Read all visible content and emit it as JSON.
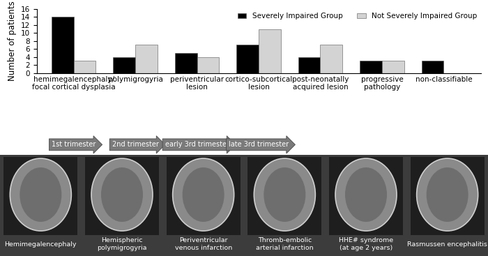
{
  "chart_data": {
    "type": "bar",
    "y_label": "Number of patients",
    "categories": [
      "hemimegalencephaly/\nfocal cortical dysplasia",
      "polymigrogyria",
      "periventricular\nlesion",
      "cortico-subcortical\nlesion",
      "post-neonatally\nacquired lesion",
      "progressive\npathology",
      "non-classifiable"
    ],
    "series": [
      {
        "name": "Severely Impaired Group",
        "color": "#000000",
        "values": [
          14,
          4,
          5,
          7,
          4,
          3,
          3
        ]
      },
      {
        "name": "Not Severely Impaired Group",
        "color": "#d3d3d3",
        "values": [
          3,
          7,
          4,
          11,
          7,
          3,
          0
        ]
      }
    ],
    "ylim": [
      0,
      16
    ],
    "yticks": [
      0,
      2,
      4,
      6,
      8,
      10,
      12,
      14,
      16
    ],
    "grid": false,
    "legend": "upper right",
    "annotations": [
      "1st trimester",
      "2nd trimester",
      "early 3rd trimester",
      "late 3rd trimester"
    ]
  },
  "image_strip": {
    "captions": [
      "Hemimegalencephaly",
      "Hemispheric\npolymigrogyria",
      "Periventricular\nvenous infarction",
      "Thromb-embolic\narterial infarction",
      "HHE# syndrome\n(at age 2 years)",
      "Rasmussen encephalitis"
    ]
  }
}
